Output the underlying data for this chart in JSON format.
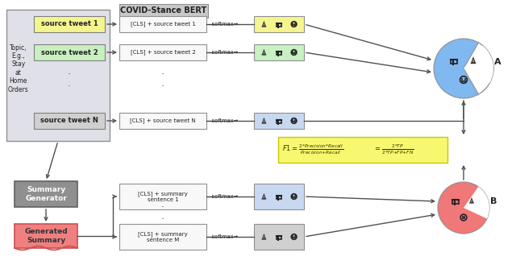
{
  "bg_color": "#ffffff",
  "bert_header": "COVID-Stance BERT",
  "bert_header_bg": "#c8c8c8",
  "topic_text": "Topic,\nE.g.,\nStay\nat\nHome\nOrders",
  "source_tweets": [
    "source tweet 1",
    "source tweet 2",
    "source tweet N"
  ],
  "tweet_colors": [
    "#f5f590",
    "#c8f0c0",
    "#d0d0d0"
  ],
  "cls_labels": [
    "[CLS] + source tweet 1",
    "[CLS] + source tweet 2",
    "[CLS] + source tweet N"
  ],
  "sum_cls_labels": [
    "[CLS] + summary\nsentence 1",
    "[CLS] + summary\nsentence M"
  ],
  "outcome_colors_src": [
    "#f5f590",
    "#c8f0c0",
    "#c8d8f0"
  ],
  "outcome_colors_sum": [
    "#c8d8f0",
    "#d0d0d0"
  ],
  "summary_gen_bg": "#909090",
  "summary_gen_text": "Summary\nGenerator",
  "generated_sum_bg": "#f08080",
  "generated_sum_text": "Generated\nSummary",
  "circle_A_color": "#80b8f0",
  "circle_B_color": "#f07878",
  "arrow_color": "#505050",
  "formula_bg": "#f8f870",
  "outer_box_bg": "#e0e0e8",
  "outer_box_ec": "#909090",
  "cls_box_bg": "#f8f8f8",
  "cls_box_ec": "#909090"
}
